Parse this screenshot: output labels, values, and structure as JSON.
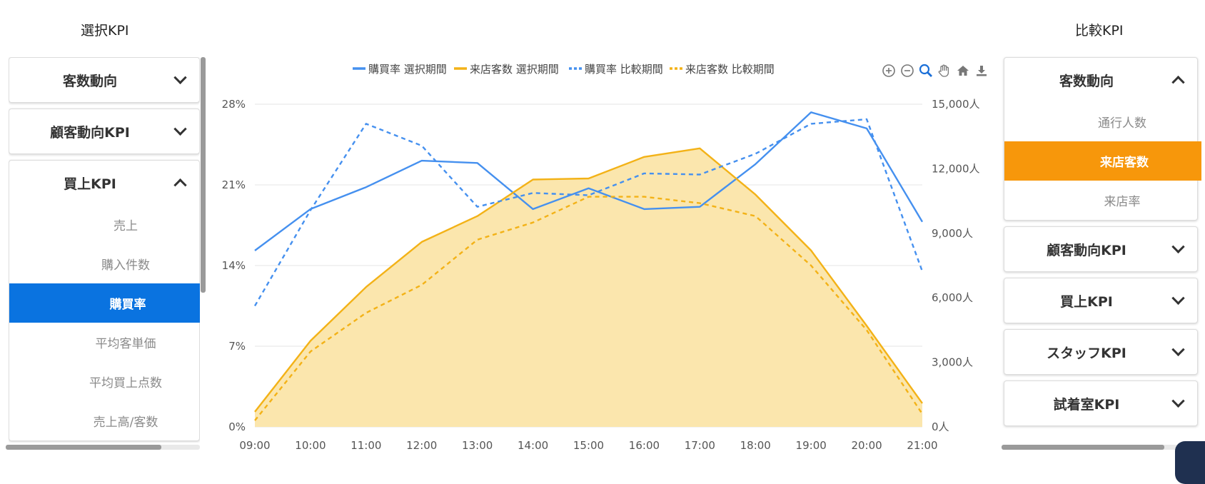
{
  "left_panel": {
    "title": "選択KPI",
    "sections": [
      {
        "label": "客数動向",
        "expanded": false
      },
      {
        "label": "顧客動向KPI",
        "expanded": false
      },
      {
        "label": "買上KPI",
        "expanded": true,
        "items": [
          "売上",
          "購入件数",
          "購買率",
          "平均客単価",
          "平均買上点数",
          "売上高/客数"
        ],
        "selected": "購買率"
      }
    ]
  },
  "right_panel": {
    "title": "比較KPI",
    "sections": [
      {
        "label": "客数動向",
        "expanded": true,
        "items": [
          "通行人数",
          "来店客数",
          "来店率"
        ],
        "selected": "来店客数"
      },
      {
        "label": "顧客動向KPI",
        "expanded": false
      },
      {
        "label": "買上KPI",
        "expanded": false
      },
      {
        "label": "スタッフKPI",
        "expanded": false
      },
      {
        "label": "試着室KPI",
        "expanded": false
      }
    ]
  },
  "toolbar": {
    "icons": [
      "zoom-in-icon",
      "zoom-out-icon",
      "magnifier-icon",
      "pan-hand-icon",
      "home-icon",
      "download-icon"
    ]
  },
  "colors": {
    "accent_blue": "#0a73e0",
    "accent_orange": "#f7970b",
    "series_blue": "#4590ef",
    "series_orange": "#f3b217",
    "area_fill": "#fbe6ad"
  },
  "chart_data": {
    "type": "line",
    "x": [
      "09:00",
      "10:00",
      "11:00",
      "12:00",
      "13:00",
      "14:00",
      "15:00",
      "16:00",
      "17:00",
      "18:00",
      "19:00",
      "20:00",
      "21:00"
    ],
    "y_left": {
      "ticks": [
        "0%",
        "7%",
        "14%",
        "21%",
        "28%"
      ],
      "range": [
        0,
        28
      ]
    },
    "y_right": {
      "ticks": [
        "0人",
        "3,000人",
        "6,000人",
        "9,000人",
        "12,000人",
        "15,000人"
      ],
      "range": [
        0,
        15000
      ]
    },
    "legend_position": "top",
    "grid": true,
    "series": [
      {
        "name": "購買率 選択期間",
        "axis": "left",
        "style": "solid",
        "values": [
          15.3,
          18.9,
          20.8,
          23.1,
          22.9,
          18.9,
          20.7,
          18.9,
          19.1,
          22.8,
          27.3,
          25.9,
          17.8
        ]
      },
      {
        "name": "来店客数 選択期間",
        "axis": "right",
        "style": "solid-area",
        "values": [
          700,
          4000,
          6500,
          8600,
          9800,
          11500,
          11550,
          12550,
          12950,
          10800,
          8200,
          4700,
          1100
        ]
      },
      {
        "name": "購買率 比較期間",
        "axis": "left",
        "style": "dashed",
        "values": [
          10.5,
          18.8,
          26.3,
          24.4,
          19.1,
          20.3,
          20.1,
          22.0,
          21.9,
          23.7,
          26.3,
          26.7,
          13.5
        ]
      },
      {
        "name": "来店客数 比較期間",
        "axis": "right",
        "style": "dashed",
        "values": [
          300,
          3500,
          5300,
          6600,
          8700,
          9500,
          10700,
          10700,
          10400,
          9800,
          7500,
          4500,
          600
        ]
      }
    ]
  }
}
